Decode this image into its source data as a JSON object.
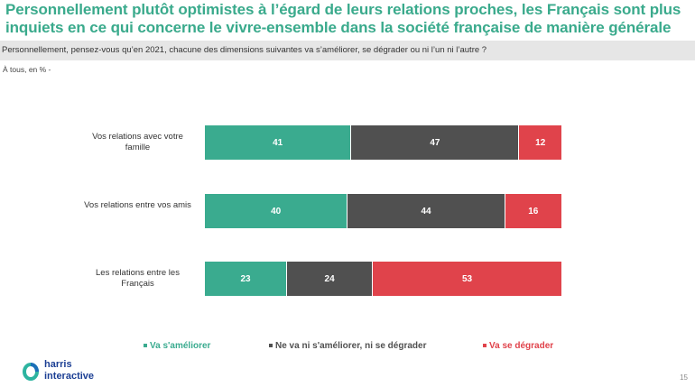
{
  "title": "Personnellement plutôt optimistes à l’égard de leurs relations proches, les Français sont plus inquiets en ce qui concerne le vivre-ensemble dans la société française de manière générale",
  "question": "Personnellement, pensez-vous qu’en 2021, chacune des dimensions suivantes va s’améliorer, se dégrader ou ni l’un ni l’autre ?",
  "base": "À tous, en % -",
  "chart_data": {
    "type": "bar",
    "stacked": true,
    "orientation": "horizontal",
    "categories": [
      "Vos relations avec votre famille",
      "Vos relations entre vos amis",
      "Les relations entre les Français"
    ],
    "series": [
      {
        "name": "Va s'améliorer",
        "color": "#3aab8f",
        "values": [
          41,
          40,
          23
        ]
      },
      {
        "name": "Ne va ni s'améliorer, ni se dégrader",
        "color": "#505050",
        "values": [
          47,
          44,
          24
        ]
      },
      {
        "name": "Va se dégrader",
        "color": "#e0434b",
        "values": [
          12,
          16,
          53
        ]
      }
    ],
    "xlim": [
      0,
      100
    ],
    "legend": "bottom"
  },
  "brand": {
    "line1": "harris",
    "line2": "interactive"
  },
  "page_number": "15"
}
